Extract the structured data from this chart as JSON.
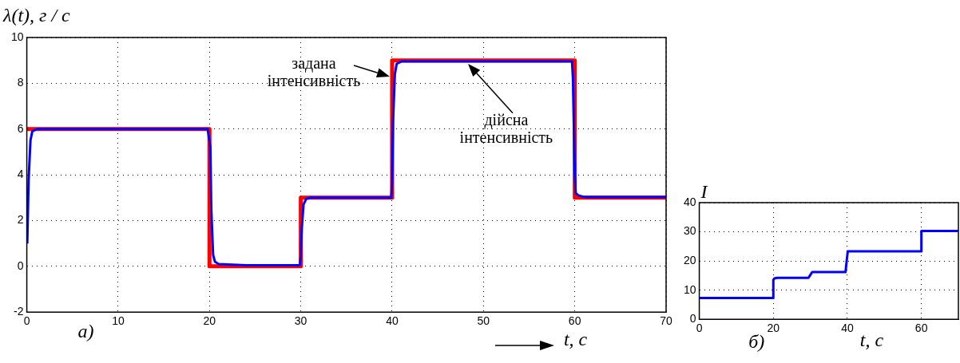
{
  "chart_data": [
    {
      "type": "line",
      "ylabel": "λ(t), г / с",
      "xlabel": "t, с",
      "xlim": [
        0,
        70
      ],
      "xticks": [
        0,
        10,
        20,
        30,
        40,
        50,
        60,
        70
      ],
      "ylim": [
        -2,
        10
      ],
      "yticks": [
        -2,
        0,
        2,
        4,
        6,
        8,
        10
      ],
      "grid": true,
      "legend": false,
      "series": [
        {
          "type": "step",
          "color": "#ff0000",
          "x": [
            0,
            20,
            30,
            40,
            60,
            70
          ],
          "values": [
            6,
            0,
            3,
            9,
            3,
            3
          ]
        },
        {
          "type": "line",
          "color": "#0000ff",
          "x": [
            0.05,
            0.2,
            0.4,
            0.6,
            1.1,
            19.8,
            20.1,
            20.2,
            20.4,
            20.6,
            21,
            24,
            29.9,
            30,
            30.1,
            30.3,
            30.6,
            31,
            39.9,
            40,
            40.1,
            40.3,
            40.5,
            41,
            59.7,
            59.8,
            60,
            60.1,
            60.4,
            61,
            70
          ],
          "values": [
            1,
            3.8,
            5.5,
            5.9,
            6,
            6,
            5.2,
            2.5,
            0.5,
            0.2,
            0.1,
            0.05,
            0.05,
            0.5,
            1.6,
            2.7,
            2.95,
            3,
            3,
            3.6,
            6.3,
            8.4,
            8.85,
            8.95,
            8.95,
            8.2,
            4,
            3.2,
            3.1,
            3.03,
            3.03
          ]
        }
      ],
      "annotations": [
        {
          "text": "задана інтенсивність",
          "x": 40,
          "y": 8.3
        },
        "дійсна інтенсивність",
        "а)"
      ]
    },
    {
      "type": "line",
      "ylabel": "I",
      "xlabel": "t, с",
      "xlim": [
        0,
        70
      ],
      "xticks": [
        0,
        20,
        40,
        60
      ],
      "ylim": [
        0,
        40
      ],
      "yticks": [
        0,
        10,
        20,
        30,
        40
      ],
      "grid": true,
      "legend": false,
      "series": [
        {
          "type": "line",
          "color": "#0000ff",
          "x": [
            0,
            20,
            20,
            20.3,
            21,
            29.5,
            30,
            30.5,
            39.5,
            39.8,
            40.1,
            60,
            60,
            70
          ],
          "values": [
            7.3,
            7.3,
            13.5,
            14,
            14.2,
            14.2,
            15.2,
            16.2,
            16.2,
            19.8,
            23.3,
            23.3,
            30.3,
            30.3
          ]
        }
      ],
      "annotations": [
        "б)"
      ]
    }
  ]
}
